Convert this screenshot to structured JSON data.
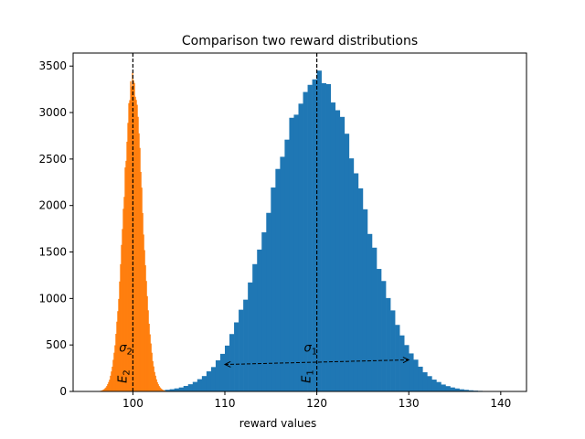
{
  "chart_data": {
    "type": "histogram",
    "title": "Comparison two reward distributions",
    "xlabel": "reward values",
    "ylabel": "",
    "xlim": [
      93.5,
      142.8
    ],
    "ylim": [
      0,
      3640
    ],
    "xticks": [
      100,
      110,
      120,
      130,
      140
    ],
    "yticks": [
      0,
      500,
      1000,
      1500,
      2000,
      2500,
      3000,
      3500
    ],
    "grid": false,
    "legend": "none",
    "series": [
      {
        "color": "#1f77b4",
        "distribution": "normal",
        "mean": 120,
        "std": 5,
        "bin_width": 0.5,
        "peak_count": 3360,
        "range": [
          102,
          138
        ]
      },
      {
        "color": "#ff7f0e",
        "distribution": "normal",
        "mean": 100,
        "std": 1,
        "bin_width": 0.1,
        "peak_count": 3370,
        "range": [
          96,
          104
        ]
      }
    ],
    "annotations": [
      {
        "text": "σ1",
        "x": 118.6,
        "y": 430,
        "rotation": 0
      },
      {
        "text": "σ2",
        "x": 98.5,
        "y": 430,
        "rotation": 0
      },
      {
        "text": "E1",
        "x": 119.3,
        "y": 90,
        "rotation": -90
      },
      {
        "text": "E2",
        "x": 99.3,
        "y": 90,
        "rotation": -90
      }
    ],
    "vlines": [
      {
        "x": 100,
        "style": "dashed",
        "color": "#000000"
      },
      {
        "x": 120,
        "style": "dashed",
        "color": "#000000"
      }
    ],
    "arrow": {
      "x1": 110,
      "y1": 290,
      "x2": 130,
      "y2": 340,
      "style": "dashed",
      "heads": "both"
    }
  }
}
